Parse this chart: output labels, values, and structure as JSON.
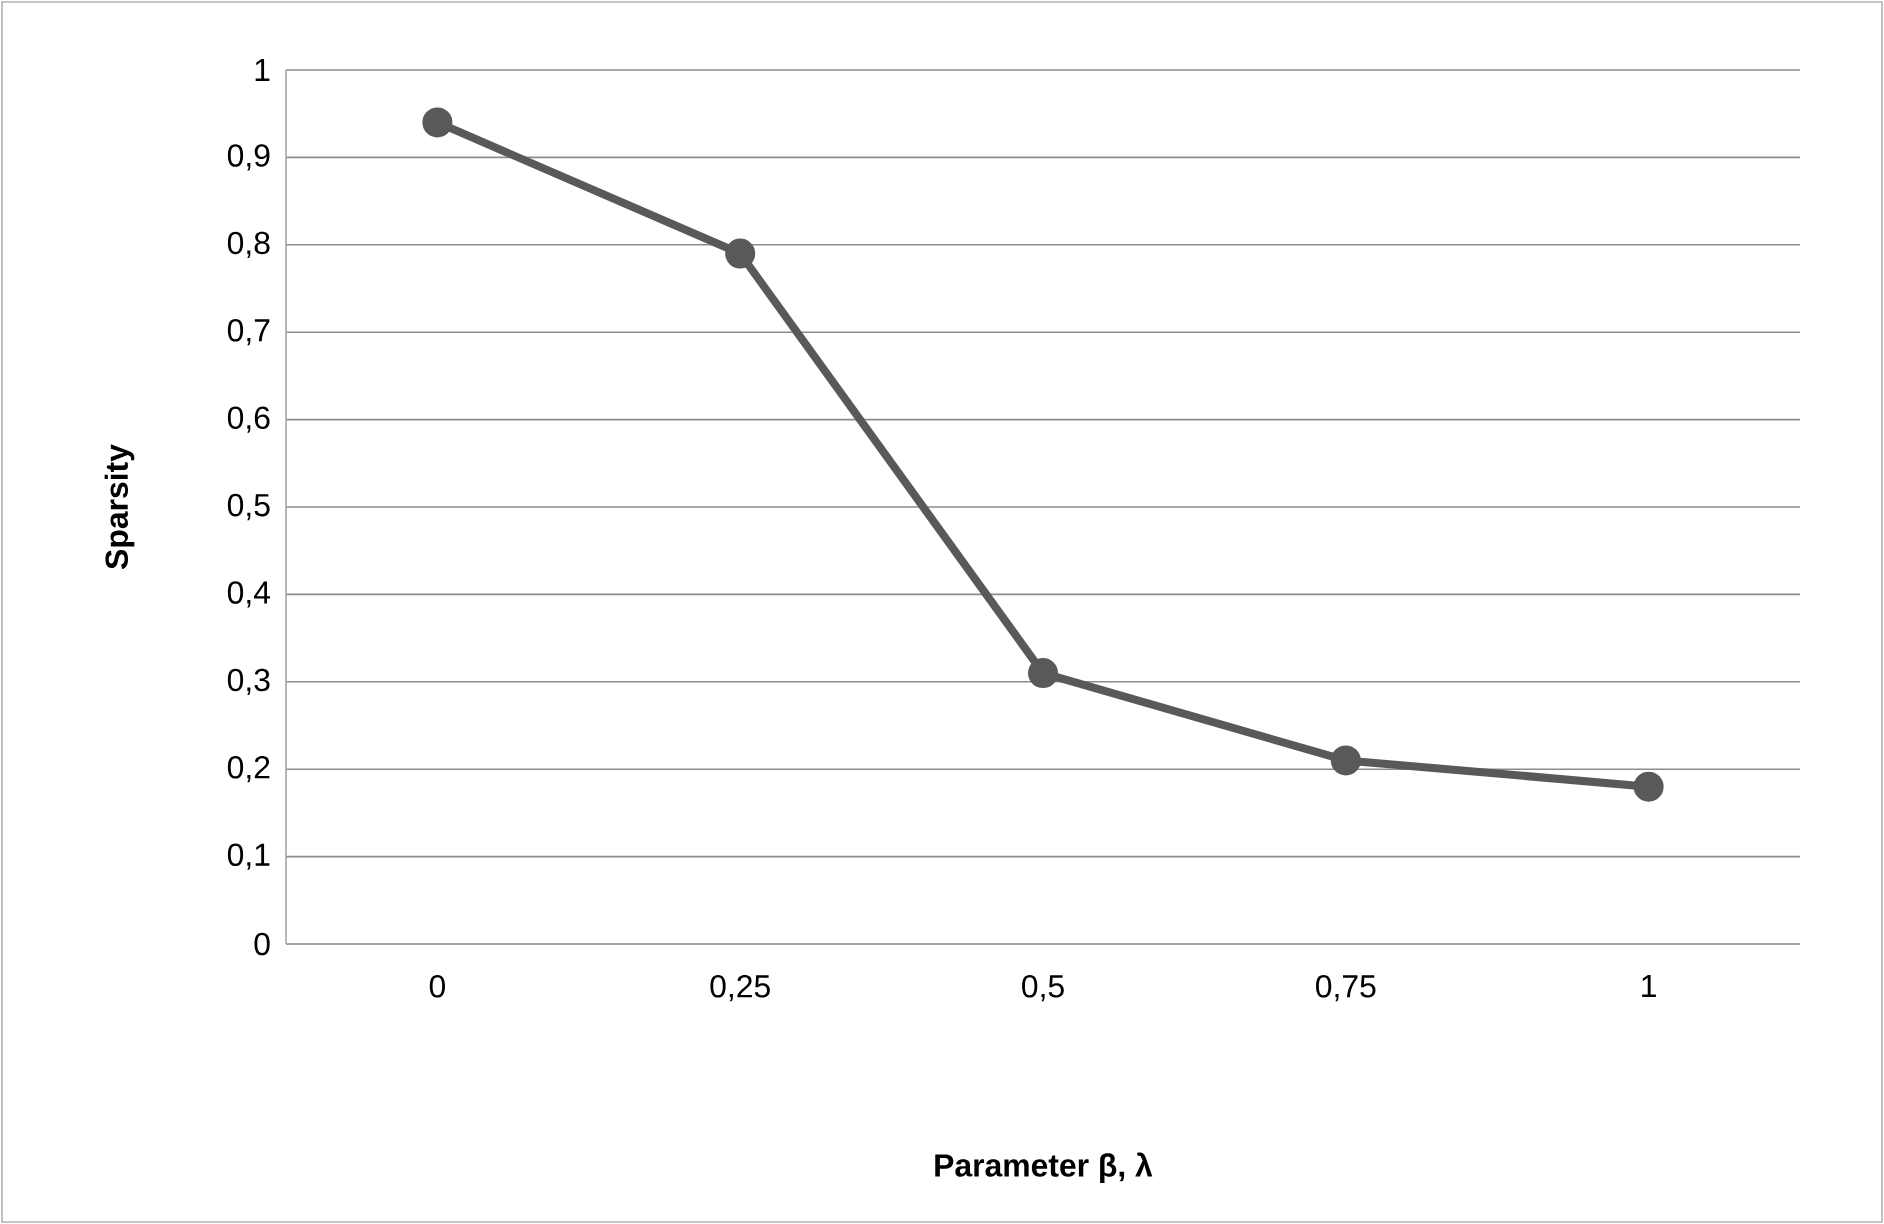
{
  "chart_data": {
    "type": "line",
    "xlabel": "Parameter β, λ",
    "ylabel": "Sparsity",
    "categories": [
      "0",
      "0,25",
      "0,5",
      "0,75",
      "1"
    ],
    "series": [
      {
        "color": "#595959",
        "values": [
          0.94,
          0.79,
          0.31,
          0.21,
          0.18
        ]
      }
    ],
    "ylim": [
      0,
      1
    ],
    "yticks": [
      0,
      {
        "value": 0.1,
        "label": "0,1"
      },
      {
        "value": 0.2,
        "label": "0,2"
      },
      {
        "value": 0.3,
        "label": "0,3"
      },
      {
        "value": 0.4,
        "label": "0,4"
      },
      {
        "value": 0.5,
        "label": "0,5"
      },
      {
        "value": 0.6,
        "label": "0,6"
      },
      {
        "value": 0.7,
        "label": "0,7"
      },
      {
        "value": 0.8,
        "label": "0,8"
      },
      {
        "value": 0.9,
        "label": "0,9"
      },
      1
    ],
    "grid": "y",
    "marker": "circle",
    "line_style": "solid"
  }
}
